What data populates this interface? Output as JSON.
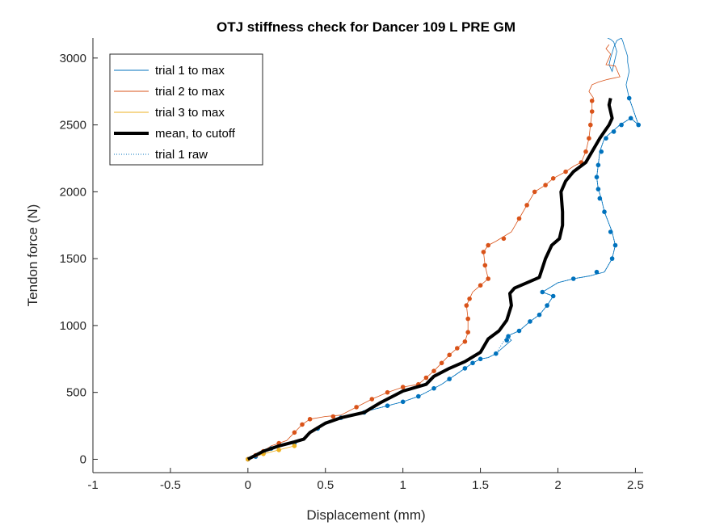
{
  "chart_data": {
    "type": "line",
    "title": "OTJ stiffness check for Dancer 109 L PRE GM",
    "xlabel": "Displacement (mm)",
    "ylabel": "Tendon force (N)",
    "xlim": [
      -1,
      2.55
    ],
    "ylim": [
      -100,
      3150
    ],
    "xticks": [
      -1,
      -0.5,
      0,
      0.5,
      1,
      1.5,
      2,
      2.5
    ],
    "xtick_labels": [
      "-1",
      "-0.5",
      "0",
      "0.5",
      "1",
      "1.5",
      "2",
      "2.5"
    ],
    "yticks": [
      0,
      500,
      1000,
      1500,
      2000,
      2500,
      3000
    ],
    "ytick_labels": [
      "0",
      "500",
      "1000",
      "1500",
      "2000",
      "2500",
      "3000"
    ],
    "grid": false,
    "legend_position": "top-left",
    "legend": [
      "trial 1 to max",
      "trial 2 to max",
      "trial 3 to max",
      "mean, to cutoff",
      "trial 1 raw"
    ],
    "colors": {
      "trial1": "#0072BD",
      "trial2": "#D95319",
      "trial3": "#EDB120",
      "mean": "#000000"
    },
    "series": [
      {
        "name": "trial 1 to max",
        "x": [
          0,
          0.05,
          0.1,
          0.15,
          0.2,
          0.25,
          0.3,
          0.35,
          0.4,
          0.5,
          0.6,
          0.7,
          0.8,
          0.9,
          1.0,
          1.1,
          1.15,
          1.2,
          1.25,
          1.3,
          1.35,
          1.4,
          1.45,
          1.5,
          1.55,
          1.6,
          1.7,
          1.67,
          1.75,
          1.82,
          1.88,
          1.93,
          1.97,
          1.9,
          2.0,
          2.1,
          2.2,
          2.3,
          2.35,
          2.37,
          2.35,
          2.3,
          2.28,
          2.26,
          2.25,
          2.26,
          2.27,
          2.3,
          2.35,
          2.4,
          2.47,
          2.52,
          2.46,
          2.44,
          2.46,
          2.45,
          2.45,
          2.44,
          2.43,
          2.42,
          2.41,
          2.38,
          2.36,
          2.34,
          2.33,
          2.35,
          2.38,
          2.36,
          2.34,
          2.32
        ],
        "y": [
          0,
          20,
          50,
          80,
          100,
          110,
          120,
          150,
          200,
          260,
          310,
          340,
          370,
          400,
          430,
          470,
          500,
          530,
          560,
          600,
          640,
          680,
          720,
          750,
          760,
          790,
          890,
          920,
          960,
          1030,
          1080,
          1150,
          1220,
          1250,
          1320,
          1350,
          1370,
          1400,
          1500,
          1600,
          1700,
          1850,
          1950,
          2020,
          2110,
          2200,
          2300,
          2400,
          2450,
          2500,
          2550,
          2500,
          2700,
          2800,
          2900,
          2970,
          3010,
          3050,
          3080,
          3120,
          3150,
          3130,
          3080,
          3000,
          2950,
          2900,
          3050,
          3120,
          3140,
          3150
        ]
      },
      {
        "name": "trial 2 to max",
        "x": [
          0,
          0.05,
          0.1,
          0.15,
          0.2,
          0.25,
          0.3,
          0.35,
          0.4,
          0.5,
          0.6,
          0.7,
          0.8,
          0.9,
          1.0,
          1.1,
          1.15,
          1.2,
          1.25,
          1.3,
          1.35,
          1.4,
          1.42,
          1.42,
          1.41,
          1.43,
          1.45,
          1.5,
          1.55,
          1.53,
          1.52,
          1.55,
          1.6,
          1.7,
          1.75,
          1.8,
          1.85,
          1.92,
          1.97,
          2.05,
          2.1,
          2.15,
          2.18,
          2.2,
          2.21,
          2.22,
          2.22,
          2.23,
          2.2,
          2.22,
          2.26,
          2.32,
          2.4,
          2.37,
          2.31,
          2.33,
          2.34,
          2.31,
          2.33
        ],
        "y": [
          0,
          30,
          60,
          100,
          120,
          140,
          200,
          260,
          300,
          320,
          330,
          390,
          450,
          500,
          540,
          560,
          610,
          660,
          720,
          780,
          830,
          880,
          950,
          1050,
          1150,
          1200,
          1250,
          1300,
          1350,
          1450,
          1550,
          1600,
          1630,
          1700,
          1800,
          1900,
          2000,
          2050,
          2100,
          2150,
          2190,
          2220,
          2300,
          2400,
          2500,
          2600,
          2680,
          2700,
          2750,
          2800,
          2820,
          2840,
          2860,
          2940,
          2950,
          3000,
          3030,
          3070,
          3100
        ]
      },
      {
        "name": "trial 3 to max",
        "x": [
          0,
          0.05,
          0.1,
          0.2,
          0.3
        ],
        "y": [
          0,
          20,
          40,
          70,
          100
        ]
      },
      {
        "name": "mean, to cutoff",
        "x": [
          0,
          0.1,
          0.2,
          0.3,
          0.36,
          0.4,
          0.5,
          0.6,
          0.75,
          0.85,
          0.95,
          1.0,
          1.15,
          1.2,
          1.3,
          1.4,
          1.5,
          1.55,
          1.62,
          1.67,
          1.7,
          1.69,
          1.72,
          1.82,
          1.88,
          1.92,
          1.96,
          2.01,
          2.03,
          2.03,
          2.02,
          2.05,
          2.1,
          2.18,
          2.22,
          2.27,
          2.3,
          2.33,
          2.35,
          2.33,
          2.34
        ],
        "y": [
          0,
          60,
          100,
          130,
          150,
          200,
          270,
          310,
          350,
          420,
          480,
          510,
          560,
          620,
          680,
          730,
          800,
          900,
          960,
          1040,
          1150,
          1240,
          1280,
          1330,
          1360,
          1500,
          1600,
          1650,
          1750,
          1850,
          2000,
          2080,
          2150,
          2220,
          2300,
          2400,
          2450,
          2500,
          2550,
          2650,
          2700
        ]
      },
      {
        "name": "trial 1 raw",
        "x": [
          0,
          0.05,
          0.1,
          0.15,
          0.2,
          0.3,
          0.35,
          0.4,
          0.5,
          0.6,
          0.7,
          0.8,
          0.9,
          1.0,
          1.1,
          1.15,
          1.2,
          1.25,
          1.3,
          1.35,
          1.4,
          1.45,
          1.5,
          1.55,
          1.6,
          1.67,
          1.75,
          1.82,
          1.88,
          1.93,
          1.97,
          1.9,
          2.0,
          2.1,
          2.2,
          2.3,
          2.35,
          2.37,
          2.35,
          2.3,
          2.28,
          2.26,
          2.25,
          2.26,
          2.27,
          2.3,
          2.35,
          2.4,
          2.47,
          2.52,
          2.46
        ],
        "y": [
          0,
          20,
          50,
          80,
          100,
          120,
          150,
          200,
          260,
          310,
          340,
          370,
          400,
          430,
          470,
          500,
          530,
          560,
          600,
          640,
          680,
          720,
          750,
          760,
          790,
          920,
          960,
          1030,
          1080,
          1150,
          1220,
          1250,
          1320,
          1350,
          1370,
          1400,
          1500,
          1600,
          1700,
          1850,
          1950,
          2020,
          2110,
          2200,
          2300,
          2400,
          2450,
          2500,
          2550,
          2500,
          2700
        ]
      }
    ],
    "markers": {
      "trial1": [
        [
          0,
          0
        ],
        [
          0.05,
          20
        ],
        [
          0.1,
          50
        ],
        [
          0.15,
          80
        ],
        [
          0.3,
          120
        ],
        [
          0.45,
          230
        ],
        [
          0.6,
          310
        ],
        [
          0.75,
          350
        ],
        [
          0.9,
          400
        ],
        [
          1.0,
          430
        ],
        [
          1.1,
          470
        ],
        [
          1.2,
          530
        ],
        [
          1.3,
          600
        ],
        [
          1.4,
          680
        ],
        [
          1.45,
          720
        ],
        [
          1.5,
          750
        ],
        [
          1.6,
          790
        ],
        [
          1.67,
          890
        ],
        [
          1.68,
          920
        ],
        [
          1.75,
          960
        ],
        [
          1.82,
          1030
        ],
        [
          1.88,
          1080
        ],
        [
          1.93,
          1150
        ],
        [
          1.97,
          1220
        ],
        [
          1.9,
          1250
        ],
        [
          2.1,
          1350
        ],
        [
          2.25,
          1400
        ],
        [
          2.35,
          1500
        ],
        [
          2.37,
          1600
        ],
        [
          2.34,
          1700
        ],
        [
          2.3,
          1850
        ],
        [
          2.27,
          1950
        ],
        [
          2.26,
          2020
        ],
        [
          2.25,
          2110
        ],
        [
          2.26,
          2200
        ],
        [
          2.28,
          2300
        ],
        [
          2.31,
          2400
        ],
        [
          2.36,
          2450
        ],
        [
          2.41,
          2500
        ],
        [
          2.47,
          2550
        ],
        [
          2.52,
          2500
        ],
        [
          2.46,
          2700
        ]
      ],
      "trial2": [
        [
          0,
          0
        ],
        [
          0.05,
          30
        ],
        [
          0.1,
          60
        ],
        [
          0.2,
          120
        ],
        [
          0.3,
          200
        ],
        [
          0.35,
          260
        ],
        [
          0.4,
          300
        ],
        [
          0.55,
          320
        ],
        [
          0.7,
          390
        ],
        [
          0.8,
          450
        ],
        [
          0.9,
          500
        ],
        [
          1.0,
          540
        ],
        [
          1.1,
          560
        ],
        [
          1.15,
          610
        ],
        [
          1.2,
          660
        ],
        [
          1.25,
          720
        ],
        [
          1.3,
          780
        ],
        [
          1.35,
          830
        ],
        [
          1.4,
          880
        ],
        [
          1.42,
          950
        ],
        [
          1.42,
          1050
        ],
        [
          1.41,
          1150
        ],
        [
          1.43,
          1200
        ],
        [
          1.5,
          1300
        ],
        [
          1.55,
          1350
        ],
        [
          1.53,
          1450
        ],
        [
          1.52,
          1550
        ],
        [
          1.55,
          1600
        ],
        [
          1.65,
          1650
        ],
        [
          1.75,
          1800
        ],
        [
          1.8,
          1900
        ],
        [
          1.85,
          2000
        ],
        [
          1.92,
          2050
        ],
        [
          1.97,
          2100
        ],
        [
          2.05,
          2150
        ],
        [
          2.15,
          2220
        ],
        [
          2.18,
          2300
        ],
        [
          2.2,
          2400
        ],
        [
          2.21,
          2500
        ],
        [
          2.22,
          2600
        ],
        [
          2.22,
          2680
        ]
      ],
      "trial3": [
        [
          0,
          0
        ],
        [
          0.1,
          40
        ],
        [
          0.2,
          70
        ],
        [
          0.3,
          100
        ]
      ]
    }
  }
}
